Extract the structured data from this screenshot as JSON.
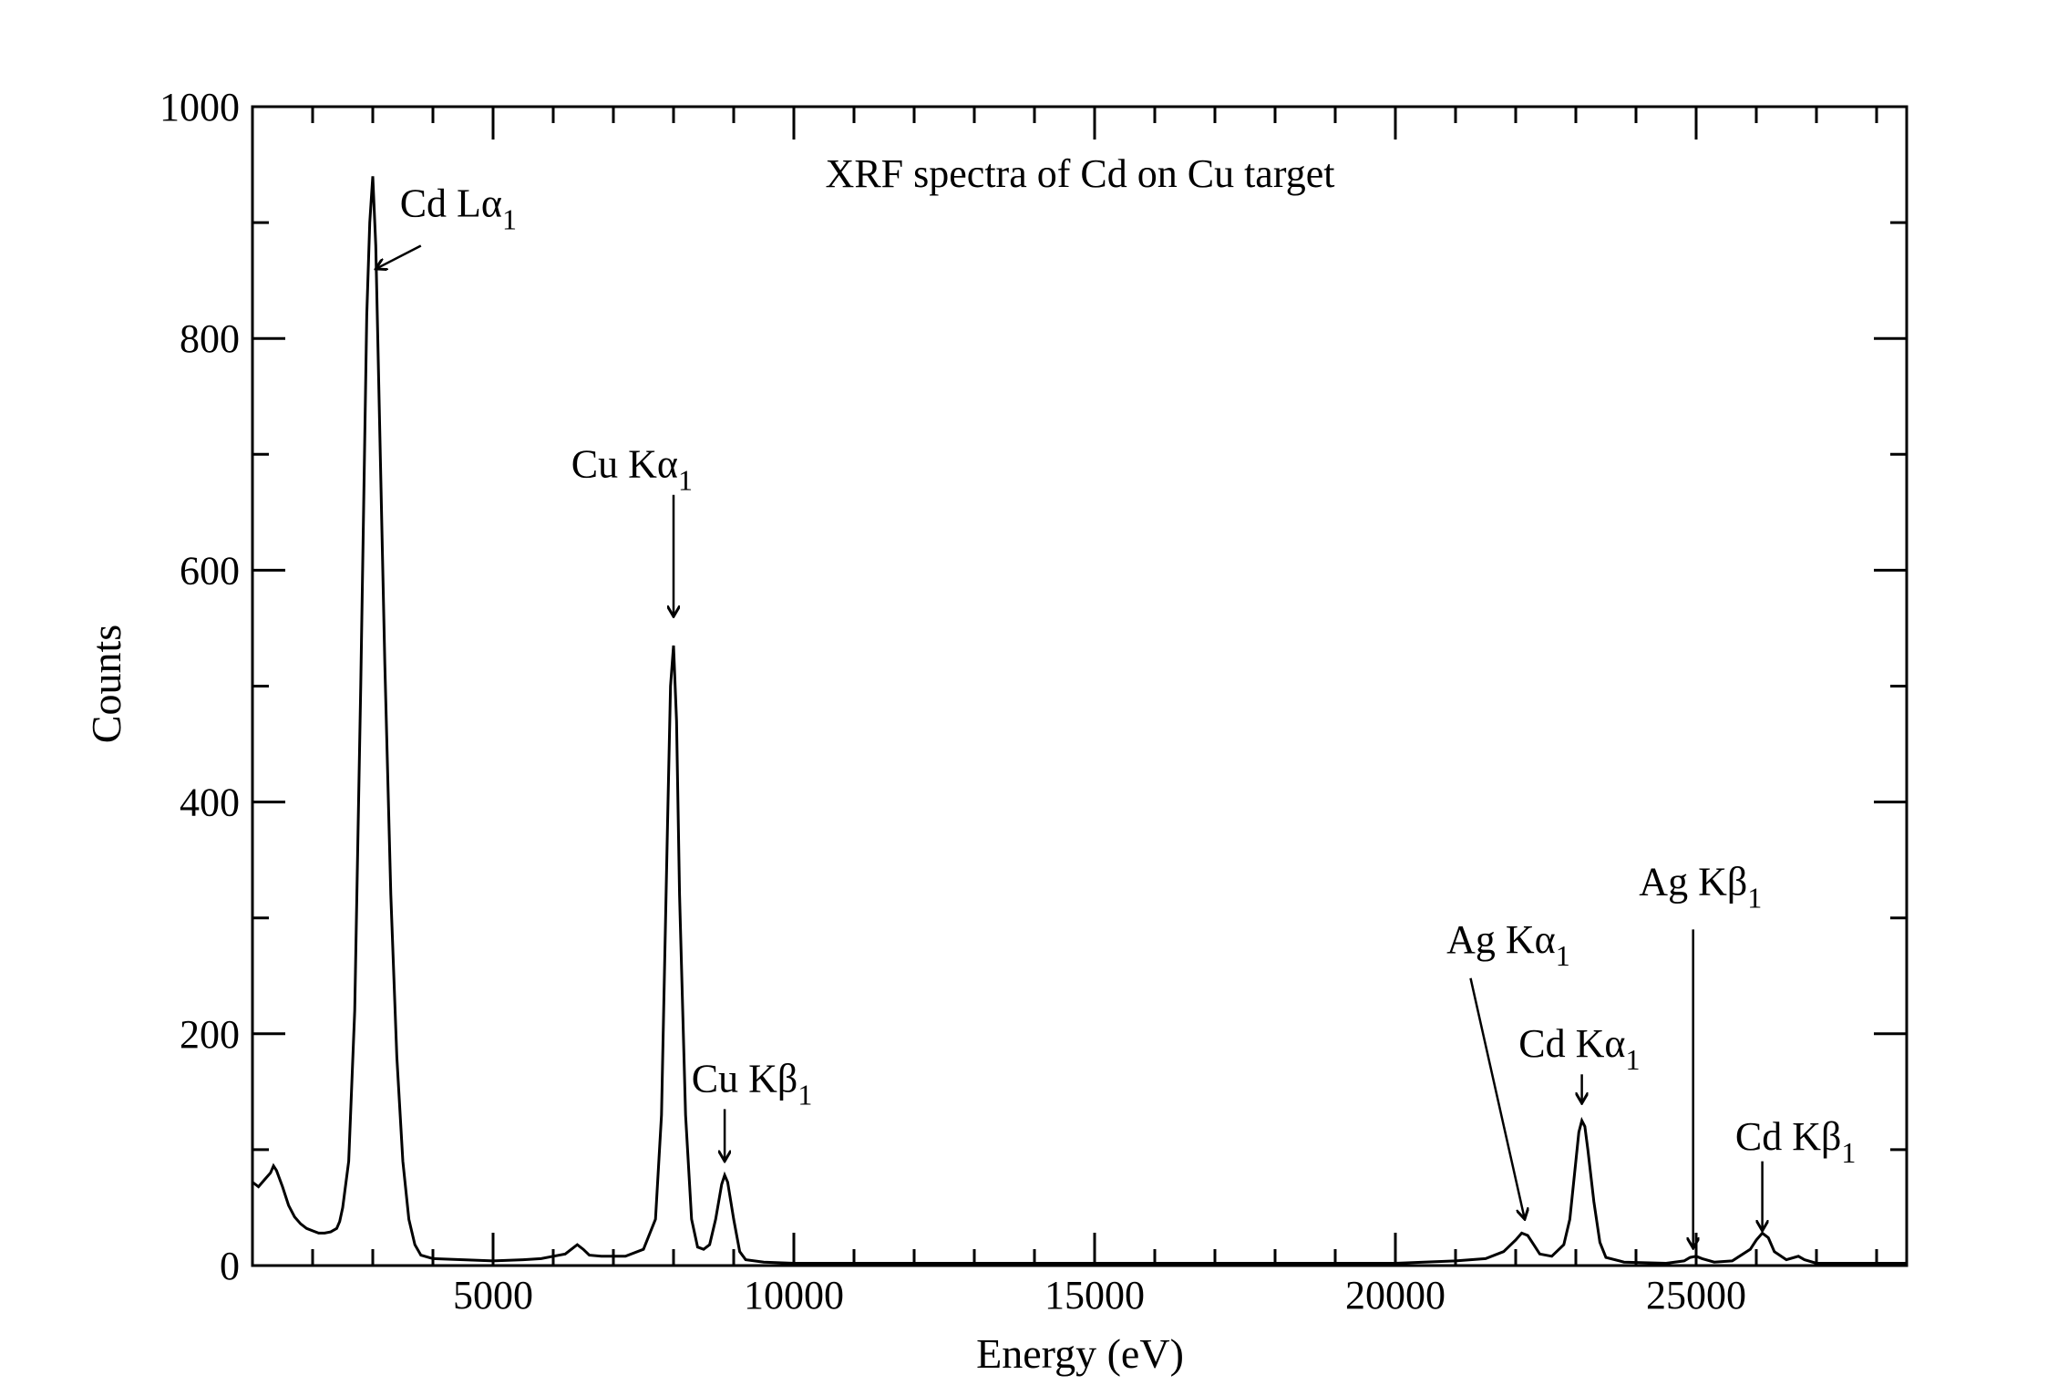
{
  "chart_data": {
    "type": "line",
    "title": "XRF spectra of Cd on Cu target",
    "xlabel": "Energy (eV)",
    "ylabel": "Counts",
    "xlim": [
      1000,
      28500
    ],
    "ylim": [
      0,
      1000
    ],
    "x_ticks_major": [
      5000,
      10000,
      15000,
      20000,
      25000
    ],
    "x_ticks_minor_step": 1000,
    "y_ticks_major": [
      0,
      200,
      400,
      600,
      800,
      1000
    ],
    "y_ticks_minor_step": 100,
    "grid": false,
    "legend": "none",
    "line_color": "#000000",
    "series": [
      {
        "points": [
          [
            1000,
            72
          ],
          [
            1100,
            68
          ],
          [
            1200,
            74
          ],
          [
            1300,
            80
          ],
          [
            1350,
            86
          ],
          [
            1400,
            82
          ],
          [
            1500,
            68
          ],
          [
            1600,
            52
          ],
          [
            1700,
            42
          ],
          [
            1800,
            36
          ],
          [
            1900,
            32
          ],
          [
            2000,
            30
          ],
          [
            2100,
            28
          ],
          [
            2200,
            28
          ],
          [
            2300,
            29
          ],
          [
            2400,
            32
          ],
          [
            2450,
            38
          ],
          [
            2500,
            50
          ],
          [
            2600,
            90
          ],
          [
            2700,
            220
          ],
          [
            2800,
            500
          ],
          [
            2900,
            820
          ],
          [
            2950,
            900
          ],
          [
            3000,
            940
          ],
          [
            3050,
            880
          ],
          [
            3100,
            760
          ],
          [
            3200,
            520
          ],
          [
            3300,
            320
          ],
          [
            3400,
            180
          ],
          [
            3500,
            90
          ],
          [
            3600,
            40
          ],
          [
            3700,
            18
          ],
          [
            3800,
            9
          ],
          [
            4000,
            6
          ],
          [
            4500,
            5
          ],
          [
            5000,
            4
          ],
          [
            5500,
            5
          ],
          [
            5800,
            6
          ],
          [
            6000,
            8
          ],
          [
            6200,
            10
          ],
          [
            6300,
            14
          ],
          [
            6400,
            18
          ],
          [
            6500,
            14
          ],
          [
            6600,
            9
          ],
          [
            6800,
            8
          ],
          [
            7000,
            8
          ],
          [
            7200,
            8
          ],
          [
            7500,
            14
          ],
          [
            7700,
            40
          ],
          [
            7800,
            130
          ],
          [
            7900,
            380
          ],
          [
            7950,
            500
          ],
          [
            8000,
            535
          ],
          [
            8050,
            470
          ],
          [
            8100,
            320
          ],
          [
            8200,
            130
          ],
          [
            8300,
            40
          ],
          [
            8400,
            16
          ],
          [
            8500,
            14
          ],
          [
            8600,
            18
          ],
          [
            8700,
            40
          ],
          [
            8800,
            70
          ],
          [
            8850,
            78
          ],
          [
            8900,
            72
          ],
          [
            9000,
            40
          ],
          [
            9100,
            12
          ],
          [
            9200,
            5
          ],
          [
            9500,
            3
          ],
          [
            10000,
            2
          ],
          [
            12000,
            2
          ],
          [
            15000,
            2
          ],
          [
            18000,
            2
          ],
          [
            20000,
            2
          ],
          [
            21000,
            4
          ],
          [
            21500,
            6
          ],
          [
            21800,
            12
          ],
          [
            22000,
            22
          ],
          [
            22100,
            28
          ],
          [
            22200,
            26
          ],
          [
            22300,
            18
          ],
          [
            22400,
            10
          ],
          [
            22600,
            8
          ],
          [
            22800,
            18
          ],
          [
            22900,
            40
          ],
          [
            23000,
            90
          ],
          [
            23050,
            115
          ],
          [
            23100,
            125
          ],
          [
            23150,
            120
          ],
          [
            23200,
            100
          ],
          [
            23300,
            55
          ],
          [
            23400,
            20
          ],
          [
            23500,
            7
          ],
          [
            23800,
            3
          ],
          [
            24500,
            2
          ],
          [
            24800,
            4
          ],
          [
            24900,
            7
          ],
          [
            25000,
            8
          ],
          [
            25100,
            6
          ],
          [
            25300,
            3
          ],
          [
            25600,
            4
          ],
          [
            25900,
            14
          ],
          [
            26000,
            22
          ],
          [
            26100,
            28
          ],
          [
            26200,
            24
          ],
          [
            26300,
            12
          ],
          [
            26500,
            5
          ],
          [
            26700,
            8
          ],
          [
            26800,
            5
          ],
          [
            27000,
            2
          ],
          [
            28000,
            2
          ],
          [
            28500,
            2
          ]
        ]
      }
    ],
    "annotations": [
      {
        "main": "Cd Lα",
        "sub": "1",
        "x_text": 3450,
        "y_text": 905,
        "tail": [
          3800,
          880
        ],
        "head": [
          3050,
          860
        ]
      },
      {
        "main": "Cu Kα",
        "sub": "1",
        "x_text": 6300,
        "y_text": 680,
        "tail": [
          8000,
          665
        ],
        "head": [
          8000,
          560
        ]
      },
      {
        "main": "Cu Kβ",
        "sub": "1",
        "x_text": 8300,
        "y_text": 150,
        "tail": [
          8850,
          135
        ],
        "head": [
          8850,
          90
        ]
      },
      {
        "main": "Ag Kα",
        "sub": "1",
        "x_text": 20850,
        "y_text": 270,
        "tail": [
          21250,
          248
        ],
        "head": [
          22150,
          40
        ]
      },
      {
        "main": "Cd Kα",
        "sub": "1",
        "x_text": 22050,
        "y_text": 180,
        "tail": [
          23100,
          165
        ],
        "head": [
          23100,
          140
        ]
      },
      {
        "main": "Ag Kβ",
        "sub": "1",
        "x_text": 24050,
        "y_text": 320,
        "tail": [
          24950,
          290
        ],
        "head": [
          24950,
          15
        ]
      },
      {
        "main": "Cd Kβ",
        "sub": "1",
        "x_text": 25650,
        "y_text": 100,
        "tail": [
          26100,
          90
        ],
        "head": [
          26100,
          30
        ]
      }
    ]
  }
}
